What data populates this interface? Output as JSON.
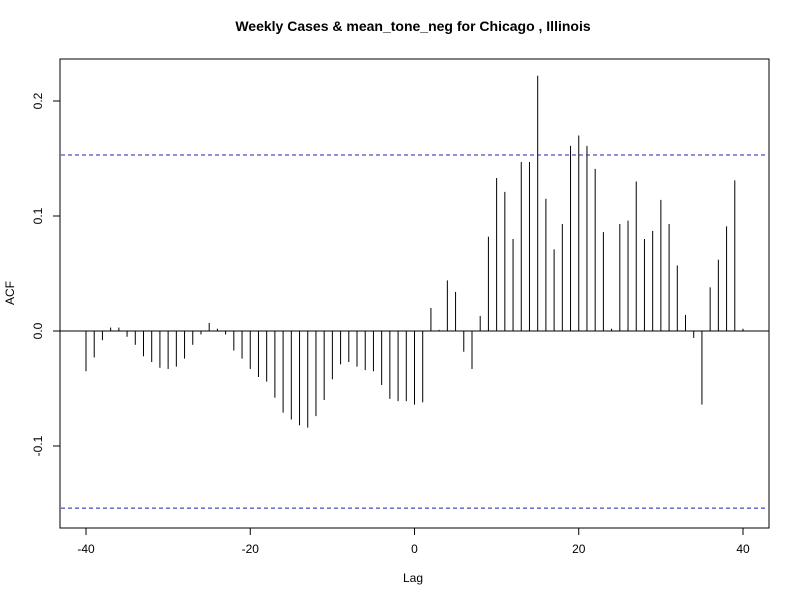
{
  "chart_data": {
    "type": "bar",
    "title": "Weekly Cases & mean_tone_neg for Chicago , Illinois",
    "xlabel": "Lag",
    "ylabel": "ACF",
    "xlim": [
      -40,
      40
    ],
    "ylim": [
      -0.155,
      0.232
    ],
    "x_ticks": [
      -40,
      -20,
      0,
      20,
      40
    ],
    "y_ticks": [
      -0.1,
      0.0,
      0.1,
      0.2
    ],
    "y_tick_labels": [
      "-0.1",
      "0.0",
      "0.1",
      "0.2"
    ],
    "confidence_bounds": [
      0.153,
      -0.154
    ],
    "lags": [
      -40,
      -39,
      -38,
      -37,
      -36,
      -35,
      -34,
      -33,
      -32,
      -31,
      -30,
      -29,
      -28,
      -27,
      -26,
      -25,
      -24,
      -23,
      -22,
      -21,
      -20,
      -19,
      -18,
      -17,
      -16,
      -15,
      -14,
      -13,
      -12,
      -11,
      -10,
      -9,
      -8,
      -7,
      -6,
      -5,
      -4,
      -3,
      -2,
      -1,
      0,
      1,
      2,
      3,
      4,
      5,
      6,
      7,
      8,
      9,
      10,
      11,
      12,
      13,
      14,
      15,
      16,
      17,
      18,
      19,
      20,
      21,
      22,
      23,
      24,
      25,
      26,
      27,
      28,
      29,
      30,
      31,
      32,
      33,
      34,
      35,
      36,
      37,
      38,
      39,
      40
    ],
    "values": [
      -0.035,
      -0.023,
      -0.008,
      0.003,
      0.003,
      -0.005,
      -0.012,
      -0.022,
      -0.027,
      -0.032,
      -0.033,
      -0.031,
      -0.024,
      -0.012,
      -0.003,
      0.007,
      0.002,
      -0.003,
      -0.017,
      -0.024,
      -0.033,
      -0.04,
      -0.044,
      -0.058,
      -0.071,
      -0.077,
      -0.082,
      -0.084,
      -0.074,
      -0.06,
      -0.042,
      -0.029,
      -0.027,
      -0.031,
      -0.034,
      -0.035,
      -0.047,
      -0.059,
      -0.061,
      -0.061,
      -0.064,
      -0.062,
      0.02,
      0.001,
      0.044,
      0.034,
      -0.018,
      -0.033,
      0.013,
      0.082,
      0.133,
      0.121,
      0.08,
      0.147,
      0.147,
      0.222,
      0.115,
      0.071,
      0.093,
      0.161,
      0.17,
      0.161,
      0.141,
      0.086,
      0.002,
      0.093,
      0.096,
      0.13,
      0.08,
      0.087,
      0.114,
      0.093,
      0.057,
      0.014,
      -0.006,
      -0.064,
      0.038,
      0.062,
      0.091,
      0.131,
      0.002
    ]
  }
}
